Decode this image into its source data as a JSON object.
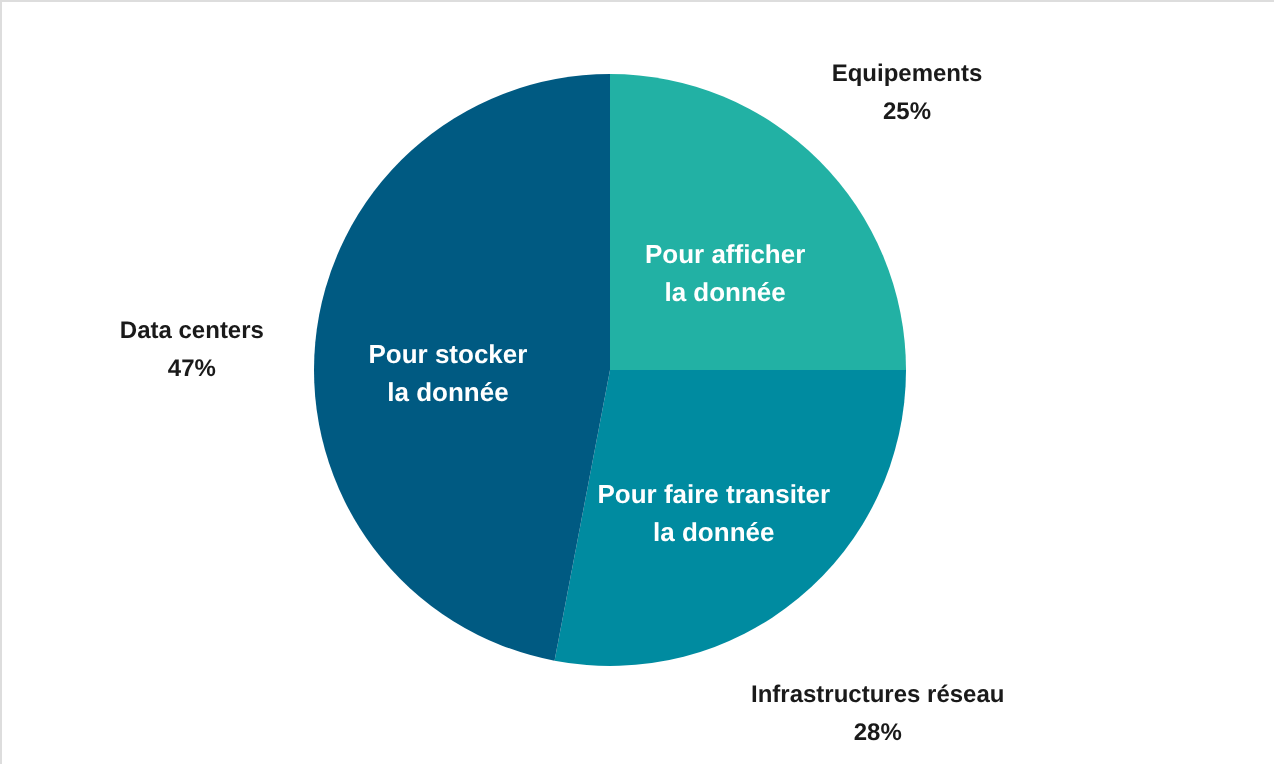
{
  "chart_data": {
    "type": "pie",
    "categories": [
      "Equipements",
      "Infrastructures réseau",
      "Data centers"
    ],
    "values": [
      25,
      28,
      47
    ],
    "colors": [
      "#22b1a4",
      "#008ba0",
      "#005a82"
    ],
    "data_labels": true,
    "value_labels": [
      "25%",
      "28%",
      "47%"
    ],
    "annotations": [
      "Pour afficher\nla donnée",
      "Pour faire transiter\nla donnée",
      "Pour stocker\nla donnée"
    ]
  }
}
